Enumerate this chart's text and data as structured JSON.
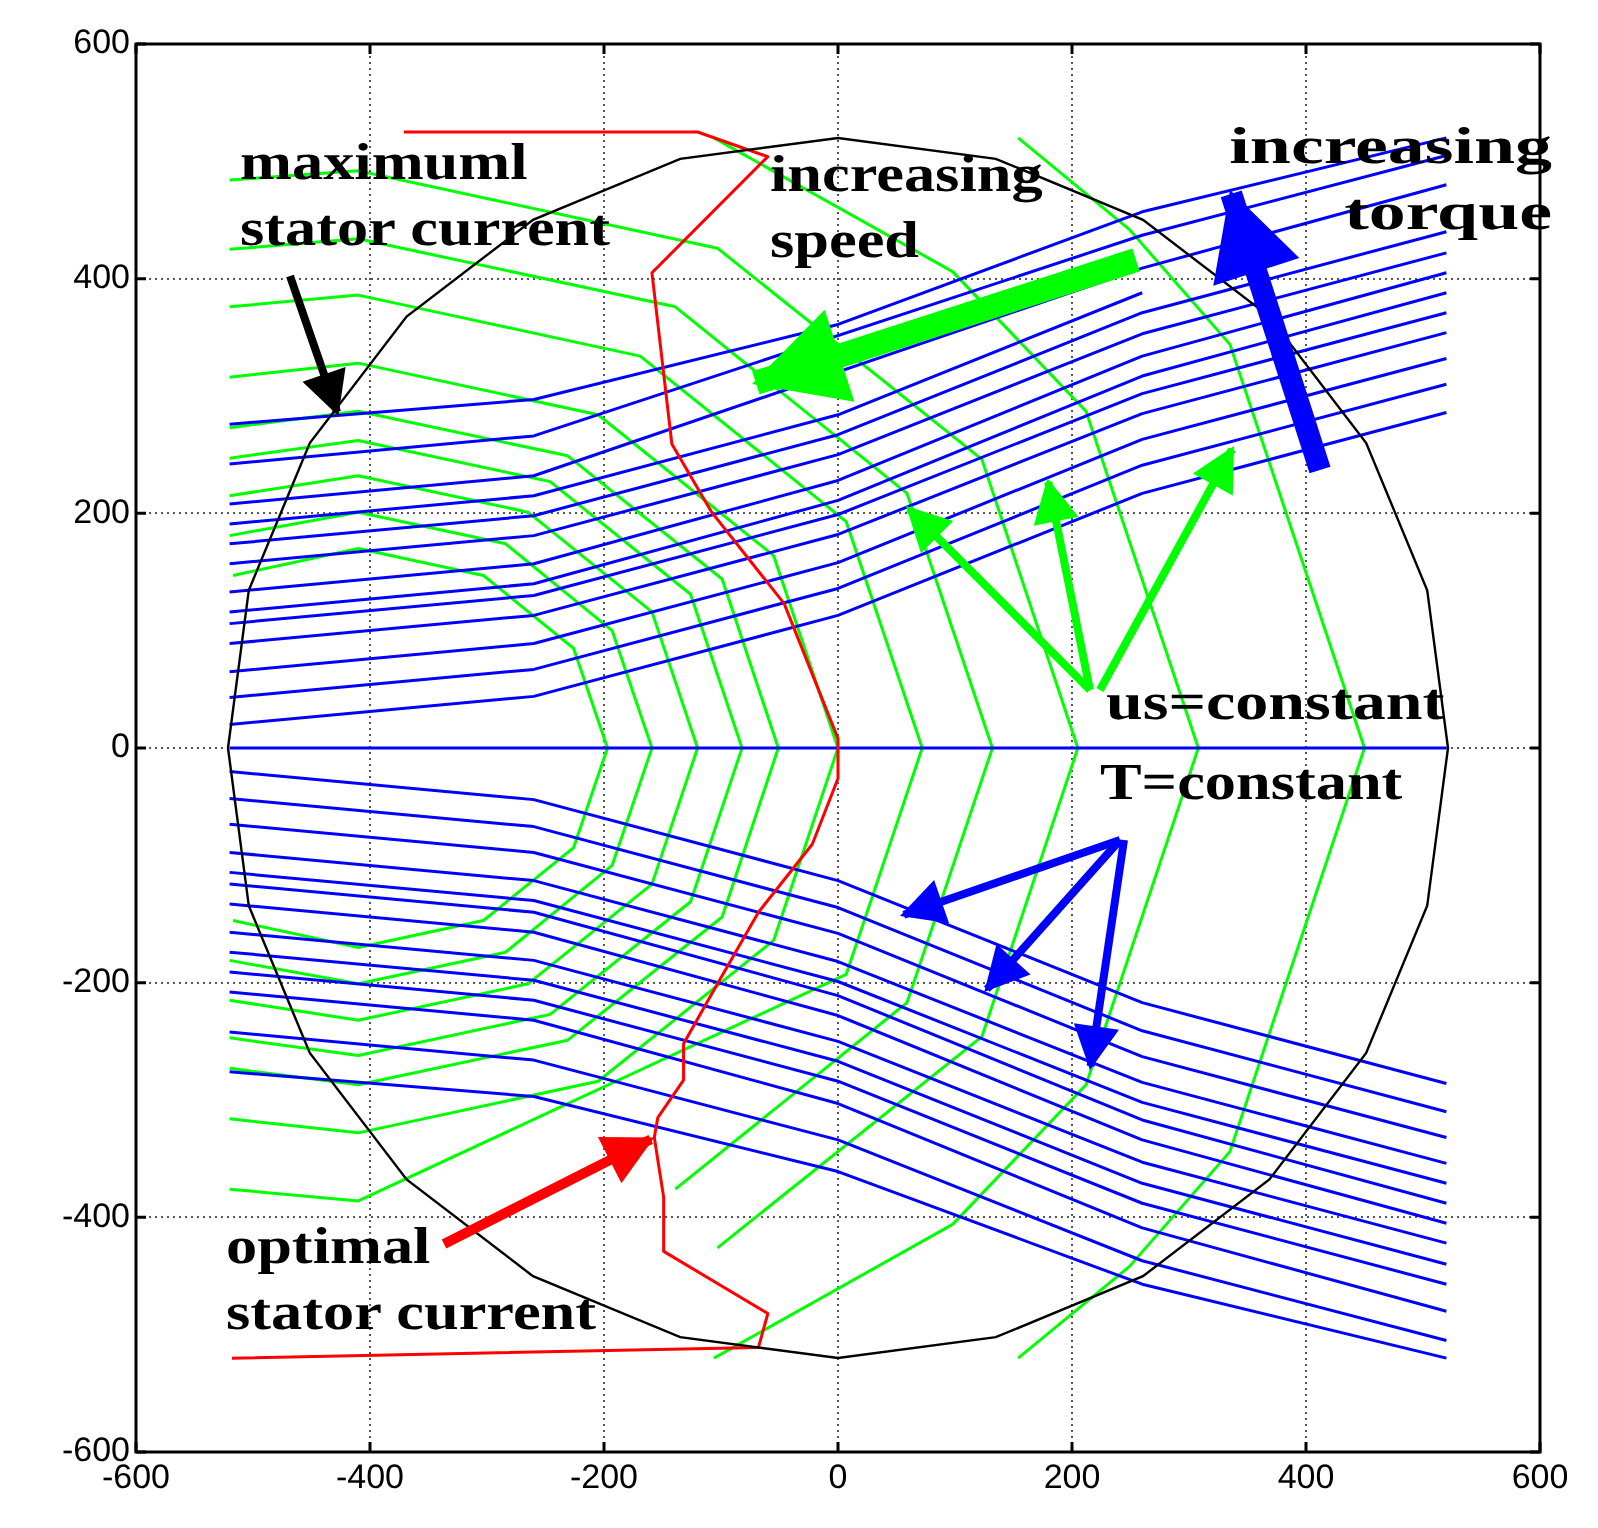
{
  "chart_data": {
    "type": "line",
    "xlim": [
      -600,
      600
    ],
    "ylim": [
      -600,
      600
    ],
    "xticks": [
      -600,
      -400,
      -200,
      0,
      200,
      400,
      600
    ],
    "yticks": [
      -600,
      -400,
      -200,
      0,
      200,
      400,
      600
    ],
    "grid": true,
    "marker": "none",
    "annotations": [
      {
        "text": "maximuml\nstator current",
        "x": -427,
        "y": 283
      },
      "increasing\nspeed",
      "increasing\ntorque",
      {
        "text": "us=constant",
        "x": 179,
        "y": 230
      },
      {
        "text": "T=constant",
        "x": 125,
        "y": -208
      },
      {
        "text": "optimal\nstator current",
        "x": -157,
        "y": -332
      }
    ],
    "series": [
      {
        "color": "#ff0000",
        "x": [
          -371,
          -120,
          -60,
          -159,
          -142,
          -108,
          -46,
          0,
          0,
          -22,
          -68,
          -103,
          -132,
          -132,
          -154,
          -157,
          -149,
          -149,
          -60,
          -68,
          -518
        ],
        "values": [
          525,
          525,
          504,
          405,
          259,
          201,
          123,
          8,
          -26,
          -82,
          -140,
          -201,
          -252,
          -283,
          -315,
          -332,
          -383,
          -429,
          -482,
          -511,
          -520
        ]
      },
      {
        "color": "#0000ff",
        "x": [
          -520,
          520
        ],
        "values": [
          0,
          0
        ]
      },
      {
        "color": "#0000ff",
        "x": [
          -520,
          -260,
          0,
          260,
          520
        ],
        "values": [
          65,
          89,
          158,
          263,
          332
        ]
      },
      {
        "color": "#0000ff",
        "x": [
          -520,
          -260,
          0,
          260,
          520
        ],
        "values": [
          89,
          113,
          182,
          285,
          354
        ]
      },
      {
        "color": "#0000ff",
        "x": [
          -520,
          -260,
          0,
          260,
          520
        ],
        "values": [
          106,
          130,
          199,
          302,
          371
        ]
      },
      {
        "color": "#0000ff",
        "x": [
          -520,
          -260,
          0,
          260,
          520
        ],
        "values": [
          116,
          140,
          211,
          317,
          388
        ]
      },
      {
        "color": "#0000ff",
        "x": [
          -520,
          -260,
          0,
          260,
          520
        ],
        "values": [
          133,
          157,
          228,
          334,
          405
        ]
      },
      {
        "color": "#0000ff",
        "x": [
          -520,
          -260,
          0,
          260,
          520
        ],
        "values": [
          157,
          181,
          250,
          353,
          422
        ]
      },
      {
        "color": "#0000ff",
        "x": [
          -520,
          -260,
          0,
          260,
          520
        ],
        "values": [
          174,
          198,
          267,
          371,
          440
        ]
      },
      {
        "color": "#0000ff",
        "x": [
          -520,
          -260,
          0,
          260
        ],
        "values": [
          191,
          215,
          284,
          388
        ]
      },
      {
        "color": "#0000ff",
        "x": [
          -520,
          -260,
          0,
          260,
          520
        ],
        "values": [
          208,
          232,
          null,
          409,
          480
        ]
      },
      {
        "color": "#0000ff",
        "x": [
          -520,
          -260,
          0,
          260,
          520
        ],
        "values": [
          242,
          266,
          null,
          437,
          505
        ]
      },
      {
        "color": "#0000ff",
        "x": [
          -520,
          -260,
          0,
          260,
          520
        ],
        "values": [
          276,
          297,
          361,
          457,
          520
        ]
      },
      {
        "color": "#0000ff",
        "x": [
          -520,
          -260,
          0,
          260,
          520
        ],
        "values": [
          43,
          67,
          136,
          241,
          310
        ]
      },
      {
        "color": "#0000ff",
        "x": [
          -520,
          -260,
          0,
          260,
          520
        ],
        "values": [
          20,
          44,
          113,
          217,
          286
        ]
      },
      {
        "color": "#0000ff",
        "x": [
          -520,
          -260,
          0,
          260,
          520
        ],
        "values": [
          -65,
          -89,
          -158,
          -263,
          -332
        ]
      },
      {
        "color": "#0000ff",
        "x": [
          -520,
          -260,
          0,
          260,
          520
        ],
        "values": [
          -89,
          -113,
          -182,
          -285,
          -354
        ]
      },
      {
        "color": "#0000ff",
        "x": [
          -520,
          -260,
          0,
          260,
          520
        ],
        "values": [
          -106,
          -130,
          -199,
          -302,
          -371
        ]
      },
      {
        "color": "#0000ff",
        "x": [
          -520,
          -260,
          0,
          260,
          520
        ],
        "values": [
          -116,
          -140,
          -211,
          -317,
          -388
        ]
      },
      {
        "color": "#0000ff",
        "x": [
          -520,
          -260,
          0,
          260,
          520
        ],
        "values": [
          -133,
          -157,
          -228,
          -334,
          -405
        ]
      },
      {
        "color": "#0000ff",
        "x": [
          -520,
          -260,
          0,
          260,
          520
        ],
        "values": [
          -157,
          -181,
          -250,
          -353,
          -422
        ]
      },
      {
        "color": "#0000ff",
        "x": [
          -520,
          -260,
          0,
          260,
          520
        ],
        "values": [
          -174,
          -198,
          -267,
          -371,
          -440
        ]
      },
      {
        "color": "#0000ff",
        "x": [
          -520,
          -260,
          0,
          260,
          520
        ],
        "values": [
          -191,
          -215,
          -284,
          -388,
          -457
        ]
      },
      {
        "color": "#0000ff",
        "x": [
          -520,
          -260,
          0,
          260,
          520
        ],
        "values": [
          -208,
          -232,
          -303,
          -409,
          -480
        ]
      },
      {
        "color": "#0000ff",
        "x": [
          -520,
          -260,
          0,
          260,
          520
        ],
        "values": [
          -242,
          -266,
          -334,
          -437,
          -505
        ]
      },
      {
        "color": "#0000ff",
        "x": [
          -520,
          -260,
          0,
          260,
          520
        ],
        "values": [
          -276,
          -297,
          -361,
          -457,
          -520
        ]
      },
      {
        "color": "#0000ff",
        "x": [
          -520,
          -260,
          0,
          260,
          520
        ],
        "values": [
          -43,
          -67,
          -136,
          -241,
          -310
        ]
      },
      {
        "color": "#0000ff",
        "x": [
          -520,
          -260,
          0,
          260,
          520
        ],
        "values": [
          -20,
          -44,
          -113,
          -217,
          -286
        ]
      },
      {
        "color": "#00ff00",
        "x": [
          -517,
          -410,
          -303,
          -226,
          -197,
          -226,
          -303,
          -410,
          -517
        ],
        "values": [
          147,
          170,
          147,
          85,
          0,
          -85,
          -147,
          -170,
          -147
        ]
      },
      {
        "color": "#00ff00",
        "x": [
          -520,
          -410,
          -284,
          -193,
          -159,
          -193,
          -284,
          -410,
          -520
        ],
        "values": [
          181,
          201,
          174,
          100,
          0,
          -100,
          -174,
          -201,
          -181
        ]
      },
      {
        "color": "#00ff00",
        "x": [
          -520,
          -410,
          -265,
          -159,
          -120,
          -159,
          -265,
          -410,
          -520
        ],
        "values": [
          215,
          232,
          201,
          116,
          0,
          -116,
          -201,
          -232,
          -215
        ]
      },
      {
        "color": "#00ff00",
        "x": [
          -520,
          -410,
          -246,
          -126,
          -82,
          -126,
          -246,
          -410,
          -520
        ],
        "values": [
          247,
          262,
          227,
          131,
          0,
          -131,
          -227,
          -262,
          -247
        ]
      },
      {
        "color": "#00ff00",
        "x": [
          -520,
          -410,
          -231,
          -99,
          -51,
          -99,
          -231,
          -410,
          -520
        ],
        "values": [
          273,
          287,
          249,
          144,
          0,
          -144,
          -249,
          -287,
          -273
        ]
      },
      {
        "color": "#00ff00",
        "x": [
          -520,
          -410,
          -205,
          -55,
          0,
          -55,
          -205,
          -410,
          -520
        ],
        "values": [
          316,
          328,
          284,
          164,
          0,
          -164,
          -284,
          -328,
          -316
        ]
      },
      {
        "color": "#00ff00",
        "x": [
          -520,
          -410,
          -169,
          7,
          72,
          7,
          -169,
          -410,
          -520
        ],
        "values": [
          376,
          386,
          334,
          193,
          0,
          -193,
          null,
          -386,
          -376
        ]
      },
      {
        "color": "#00ff00",
        "x": [
          -520,
          -410,
          -139,
          59,
          132,
          59,
          -139
        ],
        "values": [
          425,
          434,
          376,
          217,
          0,
          -217,
          -376
        ]
      },
      {
        "color": "#00ff00",
        "x": [
          -520,
          -410,
          -103,
          123,
          205,
          123,
          -103
        ],
        "values": [
          484,
          492,
          426,
          246,
          0,
          -246,
          -426
        ]
      },
      {
        "color": "#00ff00",
        "x": [
          -106,
          98,
          212,
          308,
          212,
          98,
          -106
        ],
        "values": [
          520,
          406,
          287,
          0,
          -287,
          -406,
          -520
        ]
      },
      {
        "color": "#00ff00",
        "x": [
          154,
          249,
          335,
          450,
          335,
          249,
          154
        ],
        "values": [
          520,
          442,
          344,
          0,
          -344,
          -442,
          -520
        ]
      }
    ]
  }
}
